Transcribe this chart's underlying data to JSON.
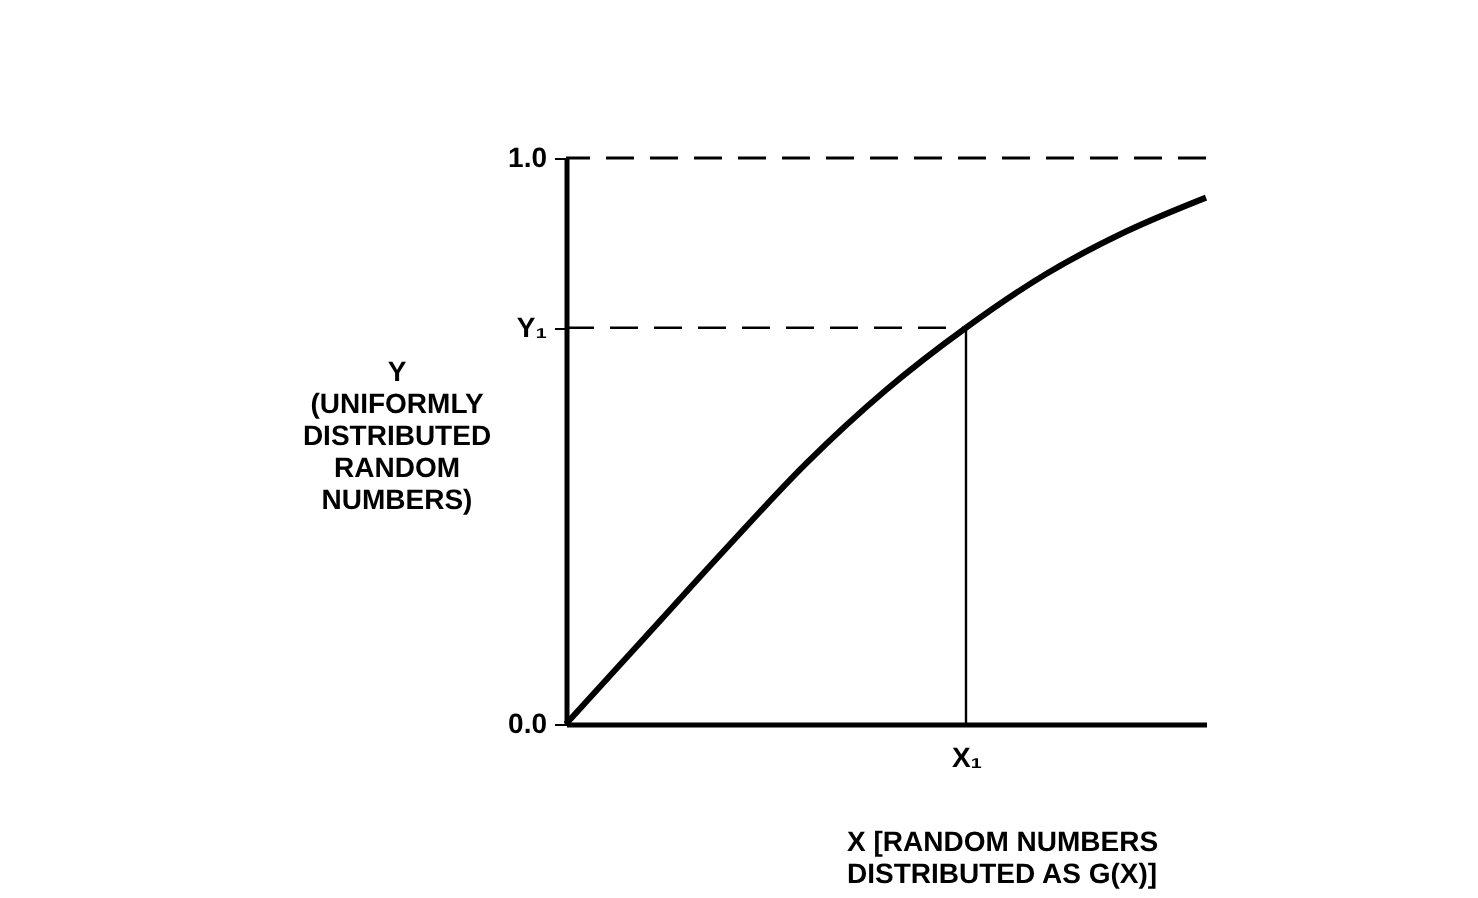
{
  "chart_data": {
    "type": "line",
    "xlabel": "X [RANDOM NUMBERS\nDISTRIBUTED AS G(X)]",
    "ylabel": "Y\n(UNIFORMLY\nDISTRIBUTED\nRANDOM\nNUMBERS)",
    "categories": [
      null,
      null,
      null,
      null,
      null,
      "X₁",
      null,
      null,
      null
    ],
    "ylim": [
      0,
      1
    ],
    "yticks": [
      {
        "value": 0,
        "label": "0.0"
      },
      {
        "value": 0.7,
        "label": "Y₁"
      },
      {
        "value": 1,
        "label": "1.0"
      }
    ],
    "grid": false,
    "ref_lines": [
      {
        "axis": "y",
        "value": 1,
        "line_style": "dashed",
        "color": "#000000"
      },
      {
        "axis": "x",
        "value": "X₁",
        "line_style": "solid",
        "color": "#000000"
      }
    ],
    "series": [
      {
        "color": "#000000",
        "values": [
          0,
          0.155,
          0.31,
          0.46,
          0.59,
          0.7,
          0.795,
          0.87,
          0.93
        ]
      },
      {
        "type": "line",
        "color": "#000000",
        "line_style": "dashed",
        "values": [
          0.7,
          0.7,
          0.7,
          0.7,
          0.7,
          0.7,
          null,
          null,
          null
        ]
      }
    ]
  }
}
